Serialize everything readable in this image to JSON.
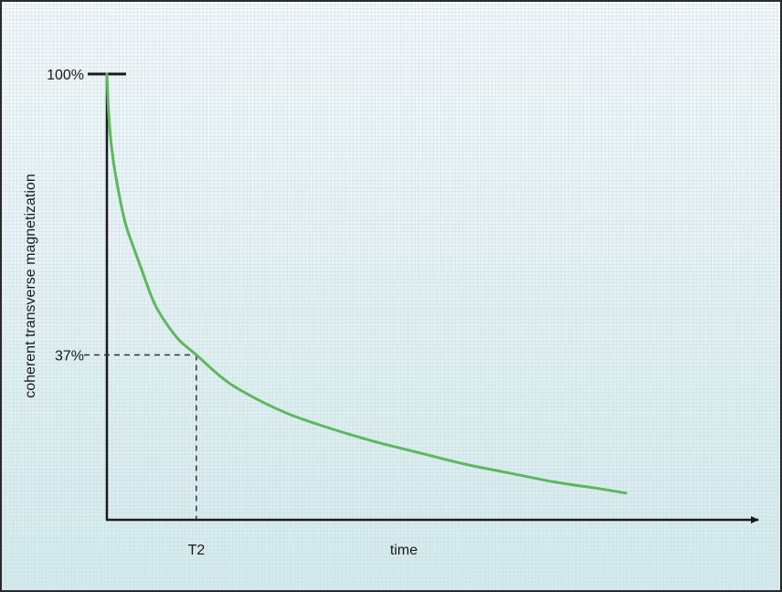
{
  "chart_data": {
    "type": "line",
    "title": "",
    "xlabel": "time",
    "ylabel": "coherent transverse magnetization",
    "yticks": [
      "100%",
      "37%"
    ],
    "xticks": [
      "T2"
    ],
    "ylim": [
      0,
      100
    ],
    "xlim": [
      0,
      5.8
    ],
    "series": [
      {
        "x": [
          0,
          0.02,
          0.05,
          0.1,
          0.2,
          0.3,
          0.4,
          0.5,
          0.6,
          0.8,
          1.0,
          1.25,
          1.5,
          2.0,
          2.5,
          3.0,
          3.5,
          4.0,
          4.5,
          5.0,
          5.5,
          5.8
        ],
        "y": [
          100,
          91,
          84,
          77,
          67,
          61,
          55.5,
          50,
          46,
          40.5,
          37,
          32.5,
          29,
          24,
          20.5,
          17.5,
          15,
          12.5,
          10.5,
          8.5,
          7,
          6
        ],
        "color": "#5cb85a"
      }
    ],
    "reference_lines": [
      {
        "x": 1.0,
        "y": 37,
        "style": "dashed"
      }
    ],
    "colors": {
      "axis": "#1a1a1a",
      "curve": "#5cb85a",
      "dashed": "#333333"
    }
  }
}
